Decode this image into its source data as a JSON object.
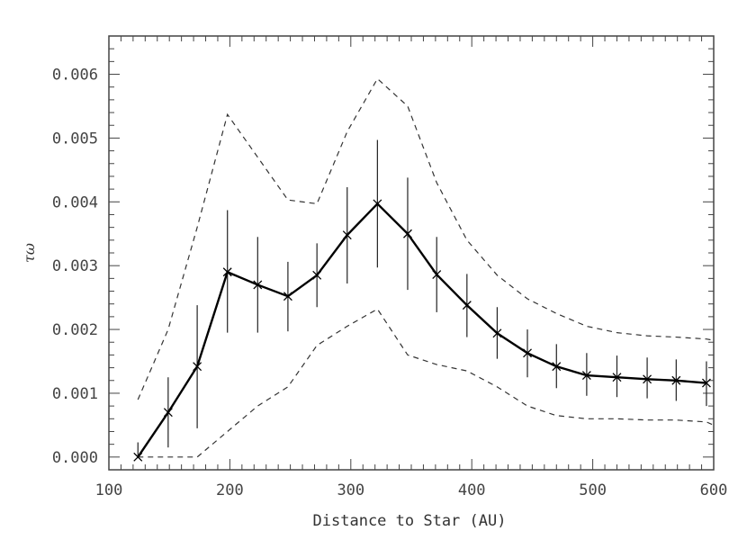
{
  "chart_data": {
    "type": "line",
    "xlabel": "Distance to Star (AU)",
    "ylabel": "τω",
    "xlim": [
      100,
      600
    ],
    "ylim": [
      -0.0002,
      0.0066
    ],
    "grid": false,
    "x_ticks": [
      100,
      200,
      300,
      400,
      500,
      600
    ],
    "x_tick_labels": [
      "100",
      "200",
      "300",
      "400",
      "500",
      "600"
    ],
    "y_ticks": [
      0,
      0.001,
      0.002,
      0.003,
      0.004,
      0.005,
      0.006
    ],
    "y_tick_labels": [
      "0.000",
      "0.001",
      "0.002",
      "0.003",
      "0.004",
      "0.005",
      "0.006"
    ],
    "series": [
      {
        "style": "solid-with-errorbars",
        "x": [
          124,
          149,
          173,
          198,
          223,
          248,
          272,
          297,
          322,
          347,
          371,
          396,
          421,
          446,
          470,
          495,
          520,
          545,
          569,
          594
        ],
        "values": [
          0.0,
          0.0007,
          0.00142,
          0.0029,
          0.0027,
          0.00252,
          0.00285,
          0.00348,
          0.00397,
          0.0035,
          0.00286,
          0.00238,
          0.00194,
          0.00163,
          0.00142,
          0.00128,
          0.00125,
          0.00122,
          0.0012,
          0.00116
        ],
        "error_low": [
          0.0,
          0.00015,
          0.00045,
          0.00195,
          0.00195,
          0.00197,
          0.00235,
          0.00272,
          0.00297,
          0.00262,
          0.00227,
          0.00188,
          0.00154,
          0.00125,
          0.00108,
          0.00096,
          0.00094,
          0.00092,
          0.00088,
          0.0008
        ],
        "error_high": [
          0.00023,
          0.00125,
          0.00238,
          0.00387,
          0.00345,
          0.00306,
          0.00335,
          0.00423,
          0.00497,
          0.00438,
          0.00345,
          0.00287,
          0.00235,
          0.002,
          0.00177,
          0.00163,
          0.00159,
          0.00156,
          0.00153,
          0.0015
        ]
      },
      {
        "style": "dashed",
        "x": [
          124,
          149,
          173,
          198,
          223,
          248,
          272,
          297,
          322,
          347,
          371,
          396,
          421,
          446,
          470,
          495,
          520,
          545,
          569,
          594,
          600
        ],
        "values": [
          0.0009,
          0.002,
          0.0036,
          0.00537,
          0.0047,
          0.00403,
          0.00397,
          0.0051,
          0.00593,
          0.0055,
          0.0043,
          0.0034,
          0.00285,
          0.00248,
          0.00225,
          0.00205,
          0.00195,
          0.0019,
          0.00188,
          0.00185,
          0.00183
        ]
      },
      {
        "style": "dashed",
        "x": [
          124,
          149,
          173,
          198,
          223,
          248,
          272,
          297,
          322,
          347,
          371,
          396,
          421,
          446,
          470,
          495,
          520,
          545,
          569,
          594,
          600
        ],
        "values": [
          0.0,
          0.0,
          0.0,
          0.0004,
          0.0008,
          0.0011,
          0.00175,
          0.00205,
          0.00232,
          0.0016,
          0.00145,
          0.00135,
          0.0011,
          0.0008,
          0.00065,
          0.0006,
          0.0006,
          0.00058,
          0.00058,
          0.00055,
          0.0005
        ]
      }
    ]
  }
}
